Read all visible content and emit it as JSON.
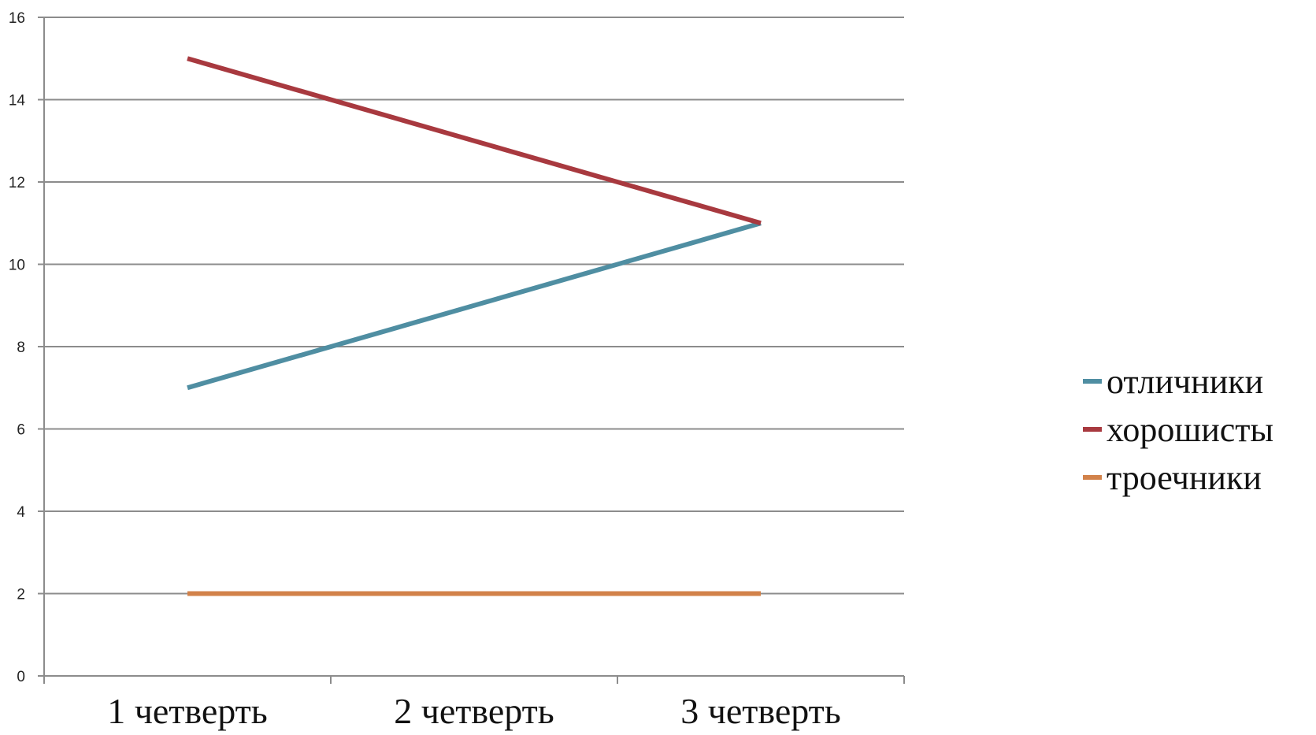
{
  "chart_data": {
    "type": "line",
    "categories": [
      "1 четверть",
      "2 четверть",
      "3 четверть"
    ],
    "series": [
      {
        "name": "отличники",
        "values": [
          7,
          9,
          11
        ],
        "color": "#4f8ea2"
      },
      {
        "name": "хорошисты",
        "values": [
          15,
          13,
          11
        ],
        "color": "#a8393f"
      },
      {
        "name": "троечники",
        "values": [
          2,
          2,
          2
        ],
        "color": "#d2824a"
      }
    ],
    "ylim": [
      0,
      16
    ],
    "yticks": [
      0,
      2,
      4,
      6,
      8,
      10,
      12,
      14,
      16
    ],
    "grid": true,
    "legend_position": "right",
    "title": "",
    "xlabel": "",
    "ylabel": ""
  }
}
